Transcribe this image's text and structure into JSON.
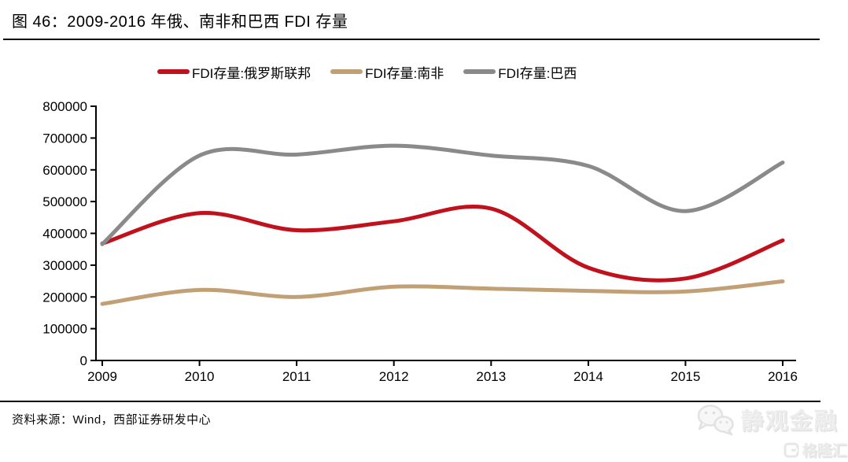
{
  "title": "图 46：2009-2016 年俄、南非和巴西 FDI 存量",
  "source": "资料来源：Wind，西部证券研发中心",
  "watermark": {
    "wechat_label": "静观金融",
    "brand_label": "格隆汇"
  },
  "chart_data": {
    "type": "line",
    "smooth": true,
    "grid": false,
    "legend_position": "top",
    "x": [
      2009,
      2010,
      2011,
      2012,
      2013,
      2014,
      2015,
      2016
    ],
    "series": [
      {
        "name": "FDI存量:俄罗斯联邦",
        "color": "#C0111C",
        "values": [
          368000,
          464000,
          410000,
          438000,
          478000,
          292000,
          258000,
          378000
        ]
      },
      {
        "name": "FDI存量:南非",
        "color": "#C2A076",
        "values": [
          178000,
          222000,
          200000,
          232000,
          226000,
          219000,
          217000,
          249000
        ]
      },
      {
        "name": "FDI存量:巴西",
        "color": "#8A8A8A",
        "values": [
          366000,
          645000,
          648000,
          676000,
          645000,
          612000,
          470000,
          623000
        ]
      }
    ],
    "ylim": [
      0,
      800000
    ],
    "y_ticks": [
      0,
      100000,
      200000,
      300000,
      400000,
      500000,
      600000,
      700000,
      800000
    ],
    "xlabel": "",
    "ylabel": ""
  }
}
